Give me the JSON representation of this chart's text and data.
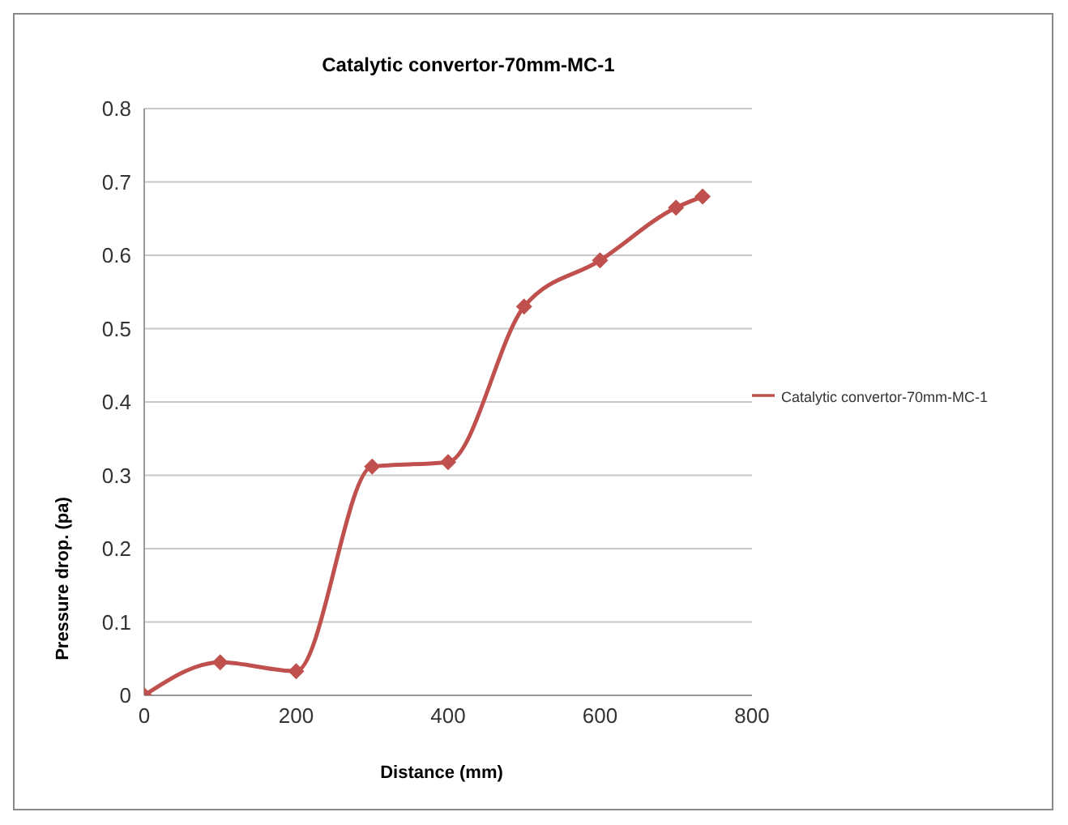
{
  "chart_data": {
    "type": "line",
    "title": "Catalytic convertor-70mm-MC-1",
    "xlabel": "Distance (mm)",
    "ylabel": "Pressure drop. (pa)",
    "x": [
      0,
      100,
      200,
      300,
      400,
      500,
      600,
      700,
      735
    ],
    "series": [
      {
        "name": "Catalytic convertor-70mm-MC-1",
        "color": "#c0504d",
        "values": [
          0,
          0.045,
          0.033,
          0.312,
          0.318,
          0.53,
          0.593,
          0.665,
          0.68
        ]
      }
    ],
    "xlim": [
      0,
      800
    ],
    "xticks": [
      0,
      200,
      400,
      600,
      800
    ],
    "ylim": [
      0,
      0.8
    ],
    "yticks": [
      0,
      0.1,
      0.2,
      0.3,
      0.4,
      0.5,
      0.6,
      0.7,
      0.8
    ],
    "grid": "y",
    "legend": "right",
    "marker": "diamond",
    "line_style": "solid"
  }
}
